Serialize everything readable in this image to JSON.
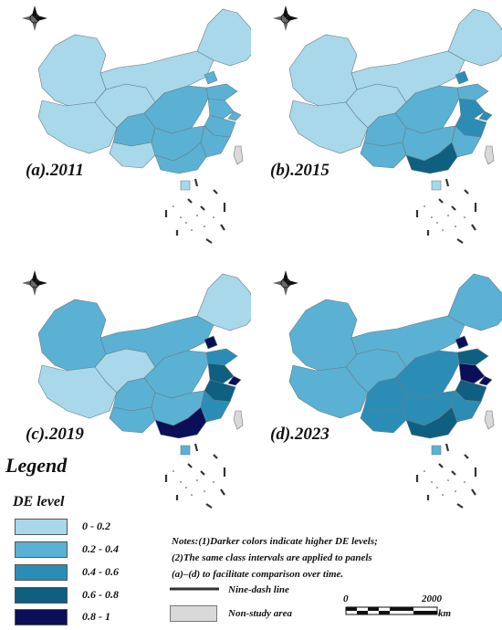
{
  "panels": [
    {
      "label": "(a).2011",
      "regions": {
        "northwest": 0,
        "xinjiang": 0,
        "tibet": 0,
        "northeast": 0,
        "inner_mongolia": 0,
        "beijing": 1,
        "shandong": 1,
        "jiangsu": 1,
        "central": 1,
        "sichuan": 1,
        "southwest": 0,
        "south": 1,
        "guangdong": 1,
        "fujian": 1,
        "zhejiang": 1,
        "shanghai": 1,
        "hainan": 0
      }
    },
    {
      "label": "(b).2015",
      "regions": {
        "northwest": 0,
        "xinjiang": 0,
        "tibet": 0,
        "northeast": 0,
        "inner_mongolia": 0,
        "beijing": 2,
        "shandong": 1,
        "jiangsu": 2,
        "central": 1,
        "sichuan": 1,
        "southwest": 1,
        "south": 1,
        "guangdong": 3,
        "fujian": 1,
        "zhejiang": 2,
        "shanghai": 2,
        "hainan": 0
      }
    },
    {
      "label": "(c).2019",
      "regions": {
        "northwest": 0,
        "xinjiang": 1,
        "tibet": 0,
        "northeast": 0,
        "inner_mongolia": 1,
        "beijing": 4,
        "shandong": 2,
        "jiangsu": 3,
        "central": 1,
        "sichuan": 1,
        "southwest": 1,
        "south": 1,
        "guangdong": 4,
        "fujian": 2,
        "zhejiang": 3,
        "shanghai": 4,
        "hainan": 1
      }
    },
    {
      "label": "(d).2023",
      "regions": {
        "northwest": 1,
        "xinjiang": 1,
        "tibet": 1,
        "northeast": 1,
        "inner_mongolia": 1,
        "beijing": 4,
        "shandong": 3,
        "jiangsu": 4,
        "central": 2,
        "sichuan": 2,
        "southwest": 2,
        "south": 2,
        "guangdong": 3,
        "fujian": 2,
        "zhejiang": 3,
        "shanghai": 4,
        "hainan": 1
      }
    }
  ],
  "legend": {
    "title": "Legend",
    "subtitle": "DE level",
    "classes": [
      {
        "label": "0 - 0.2",
        "color": "#a8d8ea"
      },
      {
        "label": "0.2 - 0.4",
        "color": "#5ab1d3"
      },
      {
        "label": "0.4 - 0.6",
        "color": "#2b8db6"
      },
      {
        "label": "0.6 - 0.8",
        "color": "#0f5f80"
      },
      {
        "label": "0.8 - 1",
        "color": "#0a0f58"
      }
    ]
  },
  "notes": {
    "line1": "Notes:(1)Darker colors indicate higher DE levels;",
    "line2": "(2)The same class intervals are applied to panels",
    "line3": "(a)–(d) to facilitate comparison over time."
  },
  "keys": {
    "nine_dash": "Nine-dash line",
    "non_study": "Non-study area",
    "non_study_color": "#d9d9d9"
  },
  "scale": {
    "start": "0",
    "end": "2000",
    "unit": "km"
  },
  "icons": {
    "north_arrow": "compass-rose-icon"
  }
}
